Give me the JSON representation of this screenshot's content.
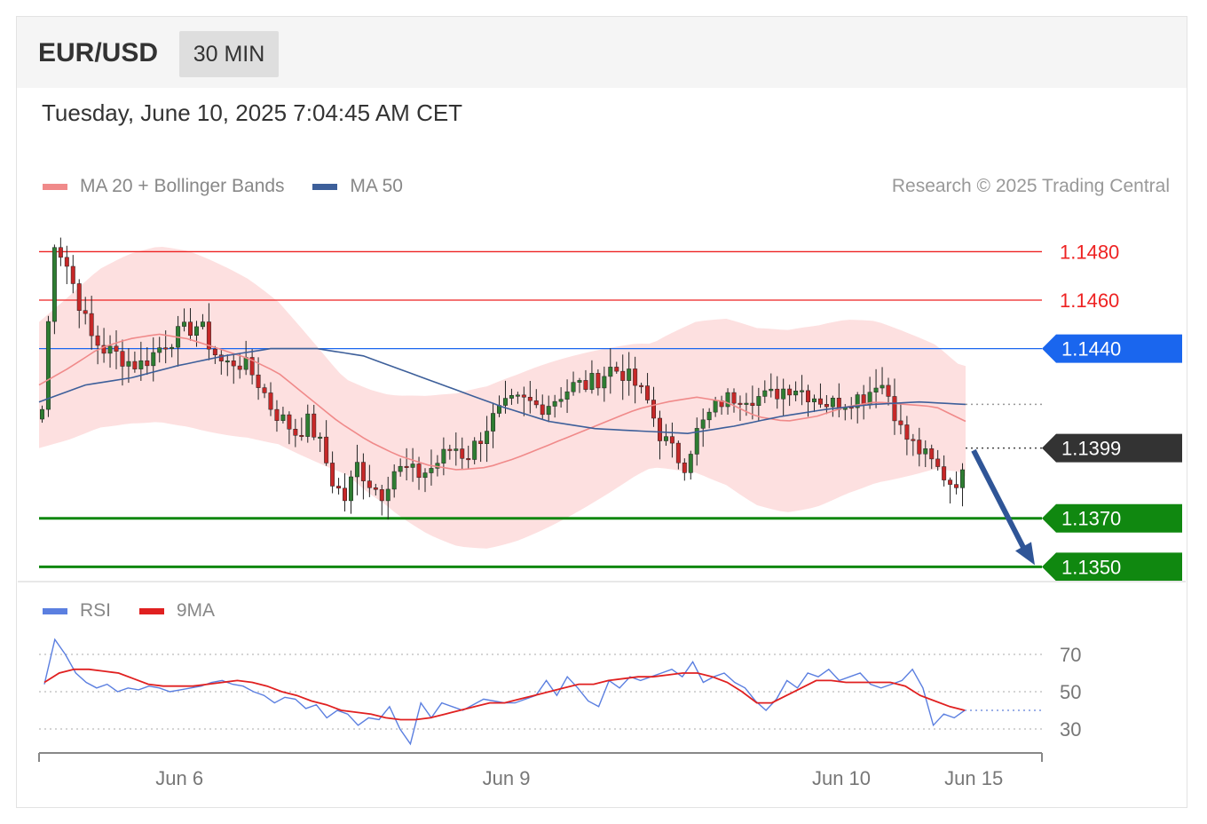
{
  "header": {
    "pair": "EUR/USD",
    "timeframe": "30 MIN",
    "datetime": "Tuesday, June 10, 2025 7:04:45 AM CET"
  },
  "legend": {
    "items": [
      {
        "label": "MA 20 + Bollinger Bands",
        "color": "#f08a8a"
      },
      {
        "label": "MA 50",
        "color": "#3d5f9a"
      }
    ],
    "credit": "Research © 2025 Trading Central"
  },
  "rsi_legend": {
    "items": [
      {
        "label": "RSI",
        "color": "#5b7fe0"
      },
      {
        "label": "9MA",
        "color": "#e02020"
      }
    ]
  },
  "chart_data": [
    {
      "type": "candlestick",
      "ylim": [
        1.1345,
        1.1497
      ],
      "price_levels": [
        {
          "label": "1.1480",
          "value": 1.148,
          "color": "#ee2222",
          "style": "line",
          "tag": "text"
        },
        {
          "label": "1.1460",
          "value": 1.146,
          "color": "#ee2222",
          "style": "line",
          "tag": "text"
        },
        {
          "label": "1.1440",
          "value": 1.144,
          "color": "#1a66ee",
          "style": "line",
          "tag": "badge"
        },
        {
          "label": "1.1399",
          "value": 1.1399,
          "color": "#333333",
          "style": "dotted",
          "tag": "badge"
        },
        {
          "label": "1.1370",
          "value": 1.137,
          "color": "#108810",
          "style": "thick",
          "tag": "badge"
        },
        {
          "label": "1.1350",
          "value": 1.135,
          "color": "#108810",
          "style": "thick",
          "tag": "badge"
        }
      ],
      "close_path": [
        1.1415,
        1.1485,
        1.1475,
        1.146,
        1.1445,
        1.144,
        1.1438,
        1.1435,
        1.1433,
        1.1437,
        1.1442,
        1.1445,
        1.1448,
        1.145,
        1.144,
        1.1433,
        1.1435,
        1.1432,
        1.1425,
        1.1415,
        1.141,
        1.1405,
        1.141,
        1.14,
        1.1385,
        1.1378,
        1.1392,
        1.1385,
        1.138,
        1.139,
        1.139,
        1.1388,
        1.139,
        1.1395,
        1.14,
        1.1395,
        1.1402,
        1.141,
        1.1415,
        1.1418,
        1.1418,
        1.1416,
        1.1418,
        1.1422,
        1.1425,
        1.1425,
        1.1428,
        1.1432,
        1.143,
        1.1425,
        1.1418,
        1.1405,
        1.1398,
        1.1392,
        1.1405,
        1.1412,
        1.1418,
        1.142,
        1.1421,
        1.142,
        1.142,
        1.1423,
        1.1425,
        1.1422,
        1.142,
        1.1417,
        1.1418,
        1.142,
        1.142,
        1.1428,
        1.142,
        1.1405,
        1.14,
        1.1395,
        1.139,
        1.1385,
        1.1387
      ],
      "ma20_path": [
        1.1425,
        1.1432,
        1.144,
        1.1444,
        1.1446,
        1.1444,
        1.144,
        1.1436,
        1.143,
        1.142,
        1.141,
        1.1402,
        1.1396,
        1.1392,
        1.139,
        1.1391,
        1.1395,
        1.14,
        1.1405,
        1.141,
        1.1415,
        1.1418,
        1.142,
        1.1418,
        1.1412,
        1.141,
        1.1412,
        1.1416,
        1.1418,
        1.1417,
        1.1416,
        1.141
      ],
      "ma50_path": [
        1.1418,
        1.1425,
        1.1428,
        1.1433,
        1.1437,
        1.144,
        1.144,
        1.1437,
        1.143,
        1.1423,
        1.1416,
        1.141,
        1.1407,
        1.1406,
        1.1405,
        1.1408,
        1.1412,
        1.1415,
        1.1417,
        1.1418,
        1.1417
      ],
      "forecast_arrow": {
        "from": 1.1398,
        "to": 1.135
      },
      "x_ticks": [
        {
          "label": "Jun 6",
          "x": 0.14
        },
        {
          "label": "Jun 9",
          "x": 0.466
        },
        {
          "label": "Jun 10",
          "x": 0.8
        },
        {
          "label": "Jun 15",
          "x": 0.932
        }
      ]
    },
    {
      "type": "line",
      "ylim": [
        20,
        80
      ],
      "y_ticks": [
        {
          "label": "70",
          "value": 70
        },
        {
          "label": "50",
          "value": 50
        },
        {
          "label": "30",
          "value": 30
        }
      ],
      "current_level": 40,
      "series": [
        {
          "name": "RSI",
          "color": "#5b7fe0",
          "values": [
            54,
            78,
            70,
            60,
            55,
            52,
            54,
            50,
            52,
            51,
            53,
            52,
            50,
            51,
            52,
            53,
            55,
            56,
            54,
            53,
            50,
            48,
            44,
            47,
            46,
            41,
            43,
            36,
            40,
            38,
            32,
            36,
            35,
            42,
            30,
            22,
            44,
            36,
            44,
            42,
            40,
            43,
            46,
            45,
            44,
            44,
            46,
            48,
            56,
            48,
            58,
            52,
            45,
            42,
            56,
            52,
            58,
            56,
            58,
            60,
            62,
            58,
            66,
            55,
            58,
            60,
            55,
            52,
            45,
            40,
            46,
            56,
            52,
            60,
            58,
            62,
            56,
            58,
            60,
            54,
            52,
            54,
            56,
            62,
            52,
            32,
            38,
            36,
            40
          ]
        },
        {
          "name": "9MA",
          "color": "#e02020",
          "values": [
            55,
            60,
            62,
            62,
            61,
            60,
            57,
            54,
            53,
            53,
            53,
            54,
            55,
            56,
            55,
            53,
            50,
            48,
            45,
            43,
            40,
            39,
            38,
            36,
            35,
            35,
            36,
            38,
            40,
            42,
            44,
            44,
            46,
            48,
            50,
            52,
            54,
            54,
            56,
            57,
            58,
            58,
            59,
            60,
            60,
            58,
            55,
            50,
            44,
            44,
            48,
            52,
            56,
            56,
            55,
            55,
            55,
            55,
            53,
            48,
            45,
            42,
            40
          ]
        }
      ]
    }
  ]
}
